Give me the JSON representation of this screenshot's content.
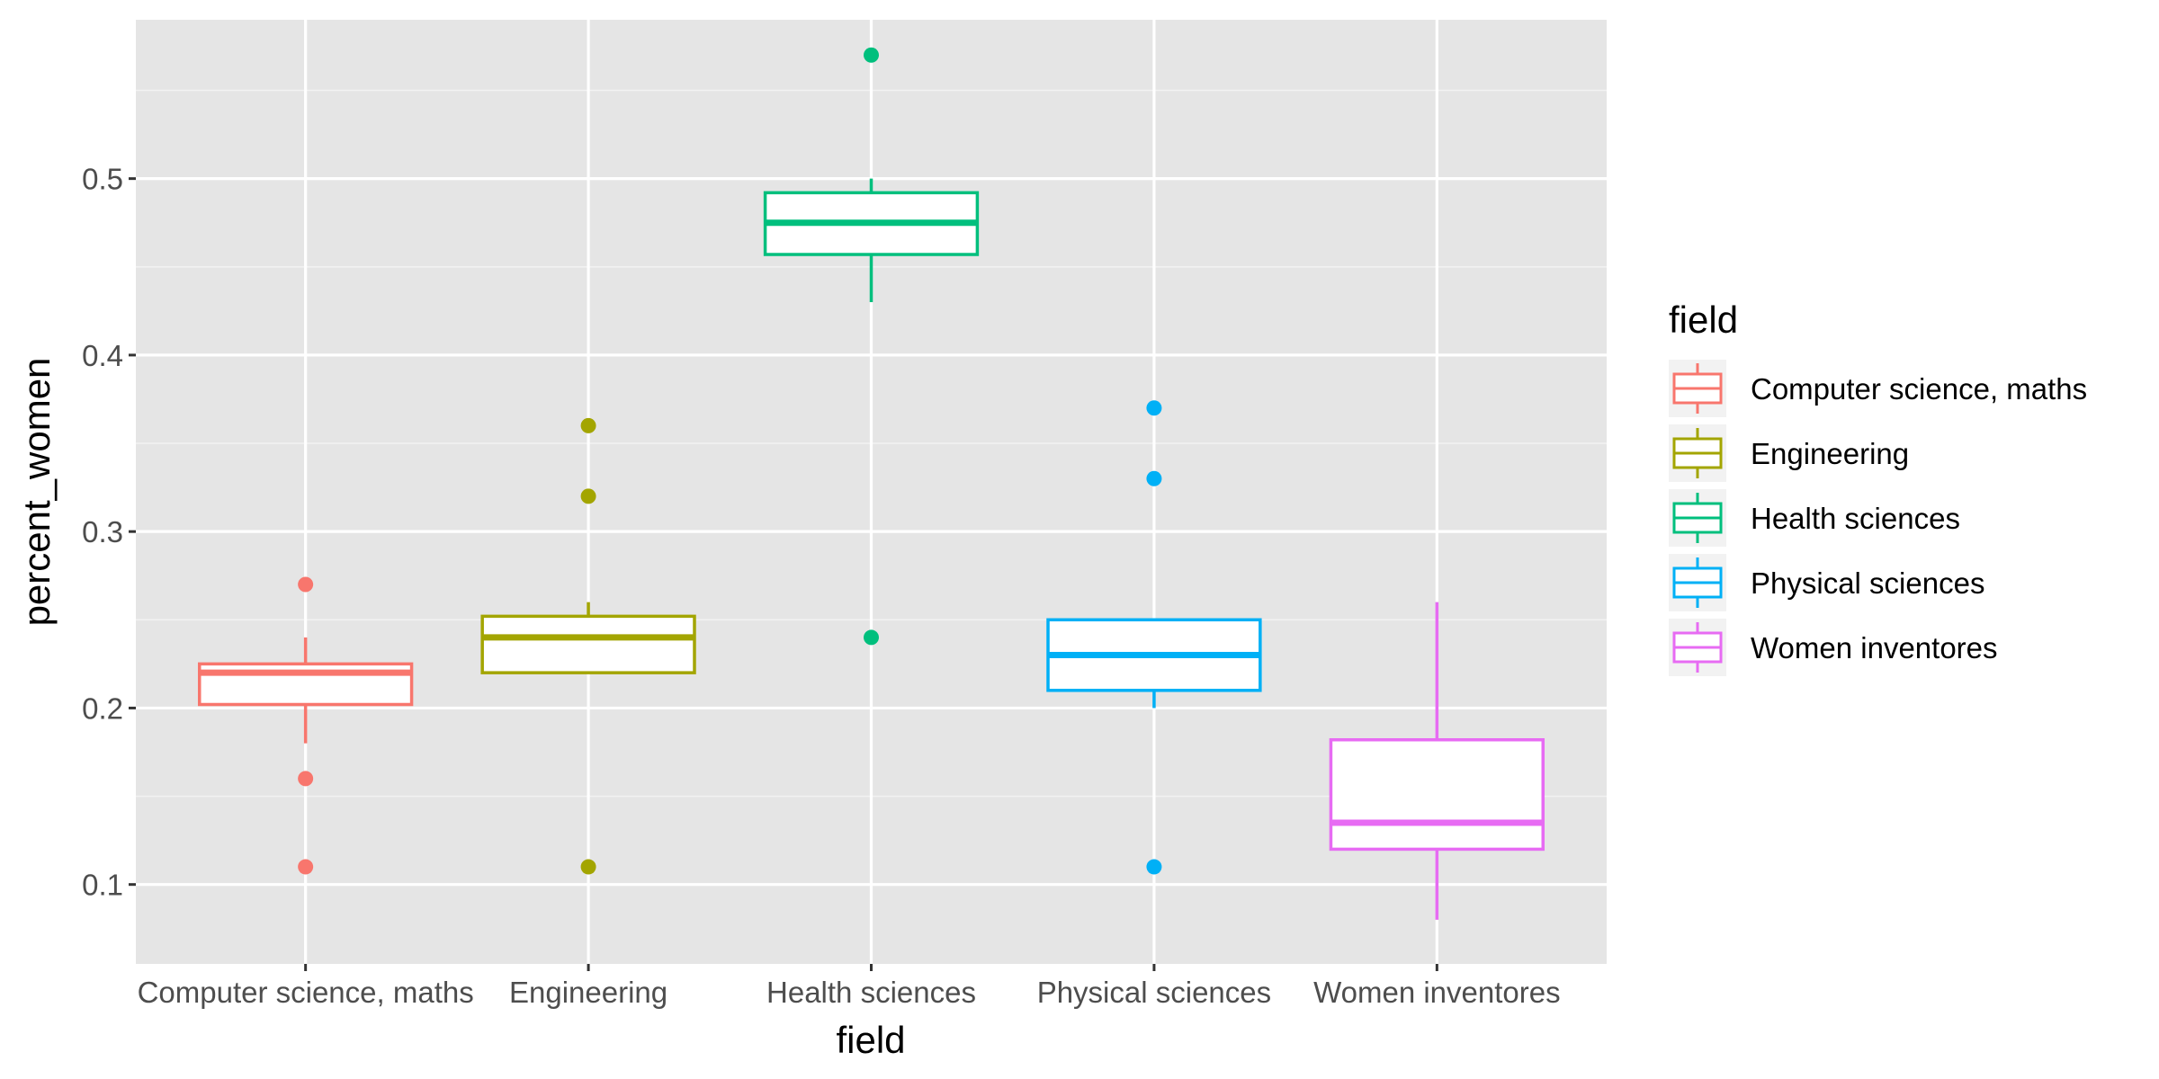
{
  "chart_data": {
    "type": "boxplot",
    "xlabel": "field",
    "ylabel": "percent_women",
    "categories": [
      "Computer science, maths",
      "Engineering",
      "Health sciences",
      "Physical sciences",
      "Women inventores"
    ],
    "yticks": [
      0.1,
      0.2,
      0.3,
      0.4,
      0.5
    ],
    "ytick_labels": [
      "0.1",
      "0.2",
      "0.3",
      "0.4",
      "0.5"
    ],
    "ylim": [
      0.055,
      0.59
    ],
    "grid": true,
    "legend": {
      "title": "field",
      "placement": "right",
      "entries": [
        "Computer science, maths",
        "Engineering",
        "Health sciences",
        "Physical sciences",
        "Women inventores"
      ]
    },
    "series": [
      {
        "category": "Computer science, maths",
        "color": "#F8766D",
        "whisker_low": 0.18,
        "q1": 0.202,
        "median": 0.22,
        "q3": 0.225,
        "whisker_high": 0.24,
        "outliers": [
          0.27,
          0.16,
          0.11
        ]
      },
      {
        "category": "Engineering",
        "color": "#A3A500",
        "whisker_low": 0.22,
        "q1": 0.22,
        "median": 0.24,
        "q3": 0.252,
        "whisker_high": 0.26,
        "outliers": [
          0.36,
          0.32,
          0.11
        ]
      },
      {
        "category": "Health sciences",
        "color": "#00BF7D",
        "whisker_low": 0.43,
        "q1": 0.457,
        "median": 0.475,
        "q3": 0.492,
        "whisker_high": 0.5,
        "outliers": [
          0.57,
          0.24
        ]
      },
      {
        "category": "Physical sciences",
        "color": "#00B0F6",
        "whisker_low": 0.2,
        "q1": 0.21,
        "median": 0.23,
        "q3": 0.25,
        "whisker_high": 0.25,
        "outliers": [
          0.37,
          0.33,
          0.11
        ]
      },
      {
        "category": "Women inventores",
        "color": "#E76BF3",
        "whisker_low": 0.08,
        "q1": 0.12,
        "median": 0.135,
        "q3": 0.182,
        "whisker_high": 0.26,
        "outliers": []
      }
    ]
  },
  "colors": {
    "panel_background": "#E5E5E5",
    "grid_major": "#FFFFFF",
    "grid_minor": "#F2F2F2",
    "legend_key_background": "#F2F2F2"
  }
}
